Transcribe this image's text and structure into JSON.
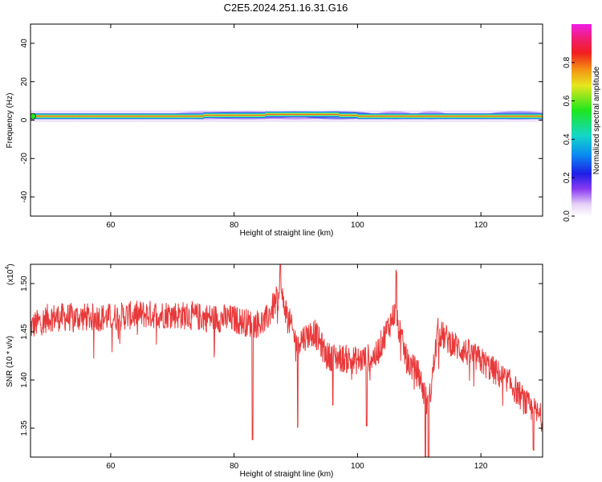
{
  "figure": {
    "title": "C2E5.2024.251.16.31.G16"
  },
  "colorbar": {
    "label": "Normalized spectral amplitude",
    "ticks": [
      "0.0",
      "0.2",
      "0.4",
      "0.6",
      "0.8"
    ],
    "range": [
      0,
      1
    ],
    "colormap": "rainbow (white-violet-blue-cyan-green-yellow-red-magenta)"
  },
  "chart_data": [
    {
      "type": "heatmap",
      "panel": "spectrogram",
      "xlabel": "Height of straight line (km)",
      "ylabel": "Frequency (Hz)",
      "xlim": [
        47,
        130
      ],
      "ylim": [
        -50,
        50
      ],
      "xticks": [
        "60",
        "80",
        "100",
        "120"
      ],
      "yticks": [
        "40",
        "20",
        "0",
        "-20",
        "-40"
      ],
      "ridge": {
        "frequency_hz": [
          2,
          2,
          2,
          2,
          3,
          3,
          3,
          2,
          2,
          2,
          2,
          2
        ],
        "height_km": [
          47,
          55,
          65,
          75,
          85,
          92,
          97,
          100,
          105,
          112,
          120,
          130
        ]
      }
    },
    {
      "type": "line",
      "panel": "snr",
      "xlabel": "Height of straight line (km)",
      "ylabel": "SNR (10 * v/v)",
      "scale_label": "(x10",
      "scale_exp": "4",
      "xlim": [
        47,
        130
      ],
      "ylim": [
        1.32,
        1.52
      ],
      "xticks": [
        "60",
        "80",
        "100",
        "120"
      ],
      "yticks": [
        "1.50",
        "1.45",
        "1.40",
        "1.35"
      ],
      "color": "#e8393a",
      "x": [
        47,
        50,
        55,
        60,
        65,
        70,
        75,
        80,
        83,
        85,
        87.5,
        90,
        93,
        95,
        100,
        103,
        106,
        108,
        110,
        111.5,
        113,
        116,
        120,
        125,
        128,
        130
      ],
      "y": [
        1.455,
        1.465,
        1.465,
        1.465,
        1.468,
        1.468,
        1.465,
        1.463,
        1.458,
        1.46,
        1.49,
        1.44,
        1.45,
        1.425,
        1.42,
        1.425,
        1.47,
        1.42,
        1.405,
        1.37,
        1.45,
        1.435,
        1.42,
        1.395,
        1.37,
        1.36
      ]
    }
  ]
}
